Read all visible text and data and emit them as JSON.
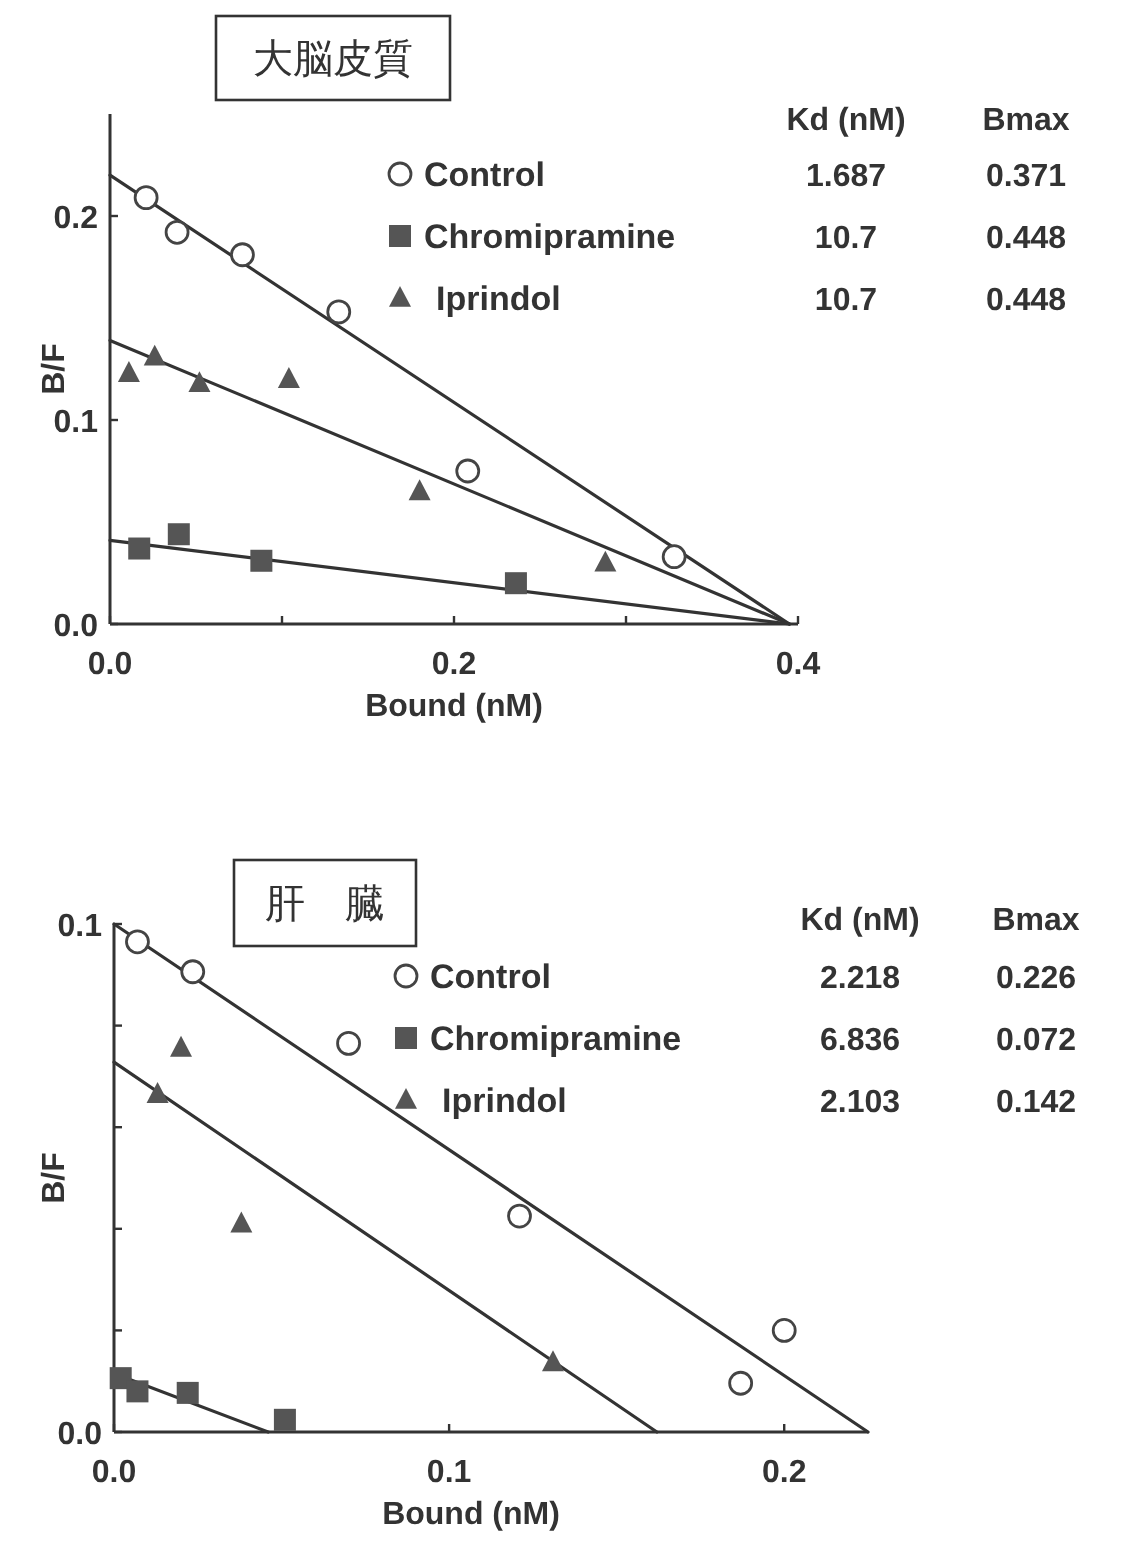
{
  "chart_data": [
    {
      "type": "scatter",
      "title": "大脳皮質",
      "xlabel": "Bound (nM)",
      "ylabel": "B/F",
      "xlim": [
        0,
        0.4
      ],
      "ylim": [
        0,
        0.25
      ],
      "xticks": [
        {
          "value": 0,
          "label": "0.0"
        },
        {
          "value": 0.1,
          "label": null
        },
        {
          "value": 0.2,
          "label": "0.2"
        },
        {
          "value": 0.3,
          "label": null
        },
        {
          "value": 0.4,
          "label": "0.4"
        }
      ],
      "yticks": [
        {
          "value": 0,
          "label": "0.0"
        },
        {
          "value": 0.1,
          "label": "0.1"
        },
        {
          "value": 0.2,
          "label": "0.2"
        }
      ],
      "legend": "top right",
      "grid": false,
      "annotations": [
        "Kd (nM)",
        "Bmax",
        "1.687",
        "0.371",
        "10.7",
        "0.448",
        "10.7",
        "0.448"
      ],
      "series": [
        {
          "name": "Control",
          "type": "scatter",
          "marker": "circle",
          "color": "#444444",
          "x": [
            0.021,
            0.039,
            0.077,
            0.133,
            0.208,
            0.328
          ],
          "values": [
            0.209,
            0.192,
            0.181,
            0.153,
            0.075,
            0.033
          ]
        },
        {
          "name": "Chromipramine",
          "type": "scatter",
          "marker": "square",
          "color": "#555555",
          "x": [
            0.017,
            0.04,
            0.088,
            0.236
          ],
          "values": [
            0.037,
            0.044,
            0.031,
            0.02
          ]
        },
        {
          "name": "Iprindol",
          "type": "scatter",
          "marker": "triangle",
          "color": "#555555",
          "x": [
            0.011,
            0.026,
            0.052,
            0.104,
            0.18,
            0.288
          ],
          "values": [
            0.123,
            0.131,
            0.118,
            0.12,
            0.065,
            0.03
          ]
        },
        {
          "type": "line",
          "color": "#333333",
          "line_style": "solid",
          "x": [
            0,
            0.395
          ],
          "values": [
            0.22,
            0
          ]
        },
        {
          "type": "line",
          "color": "#333333",
          "line_style": "solid",
          "x": [
            0,
            0.395
          ],
          "values": [
            0.139,
            0
          ]
        },
        {
          "type": "line",
          "color": "#333333",
          "line_style": "solid",
          "x": [
            0,
            0.395
          ],
          "values": [
            0.041,
            0
          ]
        }
      ]
    },
    {
      "type": "scatter",
      "title": "肝　臓",
      "xlabel": "Bound (nM)",
      "ylabel": "B/F",
      "xlim": [
        0,
        0.225
      ],
      "ylim": [
        0,
        0.1
      ],
      "xticks": [
        {
          "value": 0,
          "label": "0.0"
        },
        {
          "value": 0.1,
          "label": "0.1"
        },
        {
          "value": 0.2,
          "label": "0.2"
        }
      ],
      "yticks": [
        {
          "value": 0,
          "label": "0.0"
        },
        {
          "value": 0.02,
          "label": null
        },
        {
          "value": 0.04,
          "label": null
        },
        {
          "value": 0.06,
          "label": null
        },
        {
          "value": 0.08,
          "label": null
        },
        {
          "value": 0.1,
          "label": "0.1"
        }
      ],
      "legend": "top right",
      "grid": false,
      "annotations": [
        "Kd (nM)",
        "Bmax",
        "2.218",
        "0.226",
        "6.836",
        "0.072",
        "2.103",
        "0.142"
      ],
      "series": [
        {
          "name": "Control",
          "type": "scatter",
          "marker": "circle",
          "color": "#444444",
          "x": [
            0.007,
            0.0235,
            0.07,
            0.121,
            0.187,
            0.2
          ],
          "values": [
            0.0965,
            0.0906,
            0.0765,
            0.0425,
            0.0096,
            0.02
          ]
        },
        {
          "name": "Chromipramine",
          "type": "scatter",
          "marker": "square",
          "color": "#555555",
          "x": [
            0.002,
            0.007,
            0.022,
            0.051
          ],
          "values": [
            0.0106,
            0.008,
            0.0077,
            0.0024
          ]
        },
        {
          "name": "Iprindol",
          "type": "scatter",
          "marker": "triangle",
          "color": "#555555",
          "x": [
            0.013,
            0.02,
            0.038,
            0.131
          ],
          "values": [
            0.0665,
            0.0756,
            0.041,
            0.0137
          ]
        },
        {
          "type": "line",
          "color": "#333333",
          "line_style": "solid",
          "x": [
            0,
            0.225
          ],
          "values": [
            0.1,
            0
          ]
        },
        {
          "type": "line",
          "color": "#333333",
          "line_style": "solid",
          "x": [
            0,
            0.162
          ],
          "values": [
            0.0728,
            0
          ]
        },
        {
          "type": "line",
          "color": "#333333",
          "line_style": "solid",
          "x": [
            0,
            0.046
          ],
          "values": [
            0.0115,
            0
          ]
        }
      ]
    }
  ]
}
